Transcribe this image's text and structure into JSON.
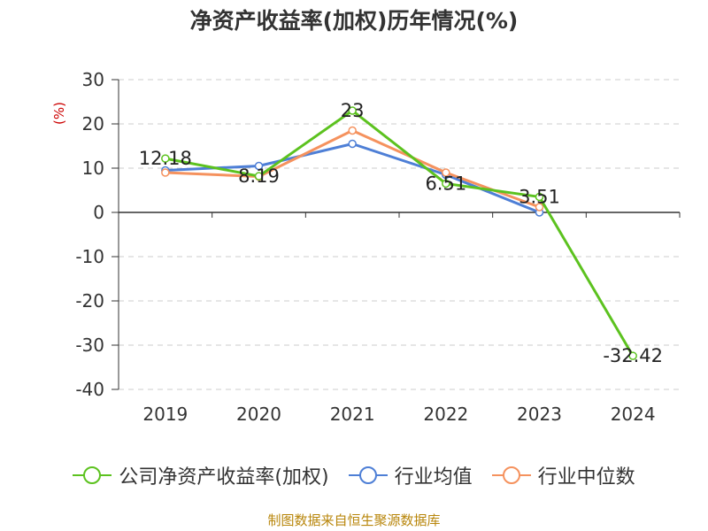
{
  "chart_data": {
    "type": "line",
    "title": "净资产收益率(加权)历年情况(%)",
    "ylabel": "(%)",
    "xlabel": "",
    "categories": [
      "2019",
      "2020",
      "2021",
      "2022",
      "2023",
      "2024"
    ],
    "ylim": [
      -40,
      30
    ],
    "yticks": [
      30,
      20,
      10,
      0,
      -10,
      -20,
      -30,
      -40
    ],
    "grid": true,
    "legend_position": "bottom",
    "series": [
      {
        "name": "公司净资产收益率(加权)",
        "color": "#5cc21f",
        "values": [
          12.18,
          8.19,
          23,
          6.51,
          3.51,
          -32.42
        ],
        "labels": [
          "12.18",
          "8.19",
          "23",
          "6.51",
          "3.51",
          "-32.42"
        ]
      },
      {
        "name": "行业均值",
        "color": "#4e7fd6",
        "values": [
          9.5,
          10.5,
          15.5,
          8.5,
          0,
          null
        ]
      },
      {
        "name": "行业中位数",
        "color": "#f5925e",
        "values": [
          9.0,
          8.1,
          18.5,
          9.0,
          1.2,
          null
        ]
      }
    ]
  },
  "source_note": "制图数据来自恒生聚源数据库"
}
